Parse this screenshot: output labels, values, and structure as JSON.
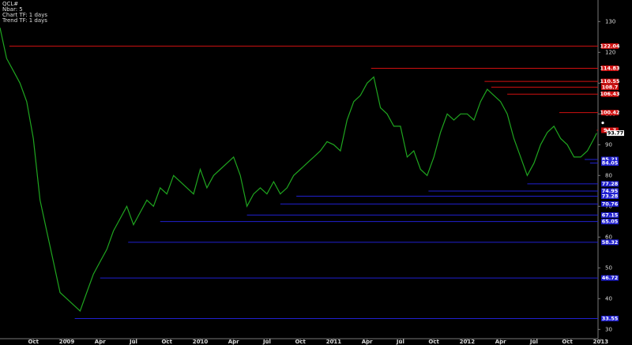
{
  "chart_data": {
    "type": "line",
    "info_lines": [
      "QCL#",
      "Nbar: 5",
      "Chart TF: 1 days",
      "Trend TF: 1 days"
    ],
    "xlim": [
      2008.5,
      2012.98
    ],
    "xticks": [
      {
        "value": 2008.75,
        "label": "Oct"
      },
      {
        "value": 2009,
        "label": "2009"
      },
      {
        "value": 2009.25,
        "label": "Apr"
      },
      {
        "value": 2009.5,
        "label": "Jul"
      },
      {
        "value": 2009.75,
        "label": "Oct"
      },
      {
        "value": 2010,
        "label": "2010"
      },
      {
        "value": 2010.25,
        "label": "Apr"
      },
      {
        "value": 2010.5,
        "label": "Jul"
      },
      {
        "value": 2010.75,
        "label": "Oct"
      },
      {
        "value": 2011,
        "label": "2011"
      },
      {
        "value": 2011.25,
        "label": "Apr"
      },
      {
        "value": 2011.5,
        "label": "Jul"
      },
      {
        "value": 2011.75,
        "label": "Oct"
      },
      {
        "value": 2012,
        "label": "2012"
      },
      {
        "value": 2012.25,
        "label": "Apr"
      },
      {
        "value": 2012.5,
        "label": "Jul"
      },
      {
        "value": 2012.75,
        "label": "Oct"
      },
      {
        "value": 2013,
        "label": "2013"
      }
    ],
    "ylim": [
      27,
      137
    ],
    "yticks": [
      30,
      40,
      50,
      60,
      70,
      80,
      90,
      100,
      110,
      120,
      130
    ],
    "color": "#1fa51f",
    "x": [
      2008.5,
      2008.55,
      2008.6,
      2008.65,
      2008.7,
      2008.75,
      2008.8,
      2008.85,
      2008.9,
      2008.95,
      2009,
      2009.05,
      2009.1,
      2009.15,
      2009.2,
      2009.25,
      2009.3,
      2009.35,
      2009.4,
      2009.45,
      2009.5,
      2009.55,
      2009.6,
      2009.65,
      2009.7,
      2009.75,
      2009.8,
      2009.85,
      2009.9,
      2009.95,
      2010,
      2010.05,
      2010.1,
      2010.15,
      2010.2,
      2010.25,
      2010.3,
      2010.35,
      2010.4,
      2010.45,
      2010.5,
      2010.55,
      2010.6,
      2010.65,
      2010.7,
      2010.75,
      2010.8,
      2010.85,
      2010.9,
      2010.95,
      2011,
      2011.05,
      2011.1,
      2011.15,
      2011.2,
      2011.25,
      2011.3,
      2011.35,
      2011.4,
      2011.45,
      2011.5,
      2011.55,
      2011.6,
      2011.65,
      2011.7,
      2011.75,
      2011.8,
      2011.85,
      2011.9,
      2011.95,
      2012,
      2012.05,
      2012.1,
      2012.15,
      2012.2,
      2012.25,
      2012.3,
      2012.35,
      2012.4,
      2012.45,
      2012.5,
      2012.55,
      2012.6,
      2012.65,
      2012.7,
      2012.75,
      2012.8,
      2012.85,
      2012.9,
      2012.95,
      2012.97
    ],
    "values": [
      128,
      118,
      114,
      110,
      104,
      92,
      72,
      62,
      52,
      42,
      40,
      38,
      36,
      42,
      48,
      52,
      56,
      62,
      66,
      70,
      64,
      68,
      72,
      70,
      76,
      74,
      80,
      78,
      76,
      74,
      82,
      76,
      80,
      82,
      84,
      86,
      80,
      70,
      74,
      76,
      74,
      78,
      74,
      76,
      80,
      82,
      84,
      86,
      88,
      91,
      90,
      88,
      98,
      104,
      106,
      110,
      112,
      102,
      100,
      96,
      96,
      86,
      88,
      82,
      80,
      86,
      94,
      100,
      98,
      100,
      100,
      98,
      104,
      108,
      106,
      104,
      100,
      92,
      86,
      80,
      84,
      90,
      94,
      96,
      92,
      90,
      86,
      86,
      88,
      92,
      93.77
    ],
    "last_price": 93.77,
    "levels": [
      {
        "start": 2008.57,
        "value": 122.04,
        "color": "#d01010"
      },
      {
        "start": 2011.28,
        "value": 114.83,
        "color": "#d01010"
      },
      {
        "start": 2012.13,
        "value": 110.55,
        "color": "#d01010"
      },
      {
        "start": 2012.18,
        "value": 108.7,
        "color": "#d01010"
      },
      {
        "start": 2012.3,
        "value": 106.43,
        "color": "#d01010"
      },
      {
        "start": 2012.69,
        "value": 100.42,
        "color": "#d01010"
      },
      {
        "start": 2012.97,
        "value": 94.7,
        "color": "#d01010"
      },
      {
        "start": 2012.88,
        "value": 85.21,
        "color": "#2020d0"
      },
      {
        "start": 2012.92,
        "value": 84.05,
        "color": "#2020d0"
      },
      {
        "start": 2012.45,
        "value": 77.28,
        "color": "#2020d0"
      },
      {
        "start": 2011.71,
        "value": 74.95,
        "color": "#2020d0"
      },
      {
        "start": 2010.72,
        "value": 73.28,
        "color": "#2020d0"
      },
      {
        "start": 2010.6,
        "value": 70.76,
        "color": "#2020d0"
      },
      {
        "start": 2010.35,
        "value": 67.15,
        "color": "#2020d0"
      },
      {
        "start": 2009.7,
        "value": 65.05,
        "color": "#2020d0"
      },
      {
        "start": 2009.46,
        "value": 58.32,
        "color": "#2020d0"
      },
      {
        "start": 2009.25,
        "value": 46.72,
        "color": "#2020d0"
      },
      {
        "start": 2009.06,
        "value": 33.55,
        "color": "#2020d0"
      }
    ]
  }
}
